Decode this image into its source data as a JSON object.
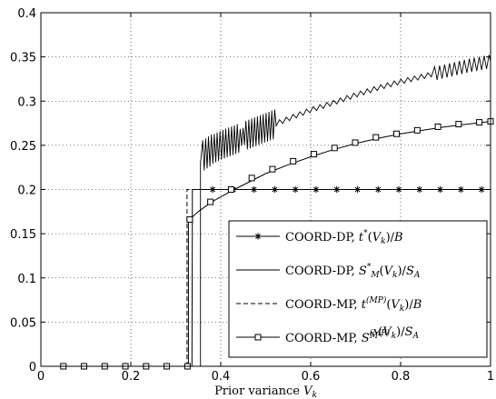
{
  "chart_data": {
    "type": "line",
    "title": "",
    "xlabel": "Prior variance V_k",
    "ylabel": "",
    "xlim": [
      0,
      1
    ],
    "ylim": [
      0,
      0.4
    ],
    "xticks": [
      0,
      0.2,
      0.4,
      0.6,
      0.8,
      1
    ],
    "xtick_labels": [
      "0",
      "0.2",
      "0.4",
      "0.6",
      "0.8",
      "1"
    ],
    "yticks": [
      0,
      0.05,
      0.1,
      0.15,
      0.2,
      0.25,
      0.3,
      0.35,
      0.4
    ],
    "ytick_labels": [
      "0",
      "0.05",
      "0.1",
      "0.15",
      "0.2",
      "0.25",
      "0.3",
      "0.35",
      "0.4"
    ],
    "grid": true,
    "legend_position": "bottom-right",
    "series": [
      {
        "name": "COORD-DP, t*(V_k)/B",
        "style": "solid",
        "marker": "asterisk",
        "x": [
          0.05,
          0.096,
          0.142,
          0.188,
          0.234,
          0.28,
          0.326,
          0.336,
          0.337,
          0.382,
          0.428,
          0.474,
          0.52,
          0.566,
          0.612,
          0.658,
          0.704,
          0.75,
          0.796,
          0.842,
          0.888,
          0.934,
          0.98,
          1.0
        ],
        "y": [
          0,
          0,
          0,
          0,
          0,
          0,
          0,
          0,
          0.2,
          0.2,
          0.2,
          0.2,
          0.2,
          0.2,
          0.2,
          0.2,
          0.2,
          0.2,
          0.2,
          0.2,
          0.2,
          0.2,
          0.2,
          0.2
        ],
        "marker_x": [
          0.05,
          0.096,
          0.142,
          0.188,
          0.234,
          0.28,
          0.326,
          0.382,
          0.428,
          0.474,
          0.52,
          0.566,
          0.612,
          0.658,
          0.704,
          0.75,
          0.796,
          0.842,
          0.888,
          0.934,
          0.98
        ],
        "marker_y": [
          0,
          0,
          0,
          0,
          0,
          0,
          0,
          0.2,
          0.2,
          0.2,
          0.2,
          0.2,
          0.2,
          0.2,
          0.2,
          0.2,
          0.2,
          0.2,
          0.2,
          0.2,
          0.2
        ]
      },
      {
        "name": "COORD-DP, S*_M(V_k)/S_A",
        "style": "solid",
        "marker": "none",
        "x": [
          0.05,
          0.355,
          0.355,
          0.36,
          0.38,
          0.4,
          0.43,
          0.46,
          0.5,
          0.55,
          0.6,
          0.65,
          0.7,
          0.75,
          0.8,
          0.85,
          0.9,
          0.95,
          1.0
        ],
        "y": [
          0,
          0,
          0.23,
          0.238,
          0.245,
          0.25,
          0.256,
          0.262,
          0.27,
          0.28,
          0.29,
          0.298,
          0.307,
          0.315,
          0.322,
          0.328,
          0.334,
          0.34,
          0.345
        ],
        "oscillation_amplitude": 0.022
      },
      {
        "name": "COORD-MP, t^(MP)(V_k)/B",
        "style": "dashed",
        "marker": "none",
        "x": [
          0.05,
          0.325,
          0.325,
          0.355,
          1.0
        ],
        "y": [
          0,
          0,
          0.2,
          0.2,
          0.2
        ]
      },
      {
        "name": "COORD-MP, S_M^(MP)(V_k)/S_A",
        "style": "solid",
        "marker": "square",
        "x": [
          0.05,
          0.328,
          0.328,
          0.35,
          0.38,
          0.43,
          0.5,
          0.55,
          0.6,
          0.65,
          0.7,
          0.75,
          0.8,
          0.85,
          0.9,
          0.95,
          1.0
        ],
        "y": [
          0,
          0,
          0.165,
          0.175,
          0.186,
          0.2,
          0.218,
          0.228,
          0.237,
          0.245,
          0.252,
          0.258,
          0.263,
          0.267,
          0.271,
          0.274,
          0.277
        ],
        "marker_x": [
          0.05,
          0.096,
          0.142,
          0.188,
          0.234,
          0.28,
          0.326,
          0.331,
          0.377,
          0.423,
          0.469,
          0.515,
          0.561,
          0.607,
          0.653,
          0.699,
          0.745,
          0.791,
          0.837,
          0.883,
          0.929,
          0.975,
          1.0
        ],
        "marker_y": [
          0,
          0,
          0,
          0,
          0,
          0,
          0,
          0.166,
          0.186,
          0.2,
          0.213,
          0.223,
          0.232,
          0.24,
          0.247,
          0.253,
          0.259,
          0.263,
          0.267,
          0.271,
          0.274,
          0.276,
          0.277
        ]
      }
    ],
    "legend": {
      "entries": [
        {
          "method": "COORD-DP,",
          "expr": "t*(V_k)/B"
        },
        {
          "method": "COORD-DP,",
          "expr": "S*_M(V_k)/S_A"
        },
        {
          "method": "COORD-MP,",
          "expr": "t^(MP)(V_k)/B"
        },
        {
          "method": "COORD-MP,",
          "expr": "S_M^(MP)(V_k)/S_A"
        }
      ]
    }
  }
}
